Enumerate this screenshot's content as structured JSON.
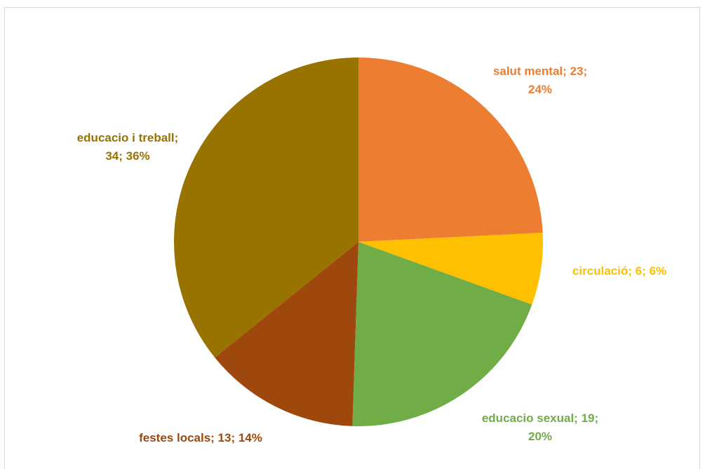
{
  "chart_data": {
    "type": "pie",
    "categories": [
      "salut mental",
      "circulació",
      "educacio sexual",
      "festes locals",
      "educacio i treball"
    ],
    "values": [
      23,
      6,
      19,
      13,
      34
    ],
    "value_labels": [
      "salut mental; 23; 24%",
      "circulació; 6; 6%",
      "educacio sexual; 19; 20%",
      "festes locals; 13; 14%",
      "educacio i treball; 34; 36%"
    ],
    "colors": [
      "#ED7D31",
      "#FFC000",
      "#70AD47",
      "#9E480E",
      "#997300"
    ]
  }
}
